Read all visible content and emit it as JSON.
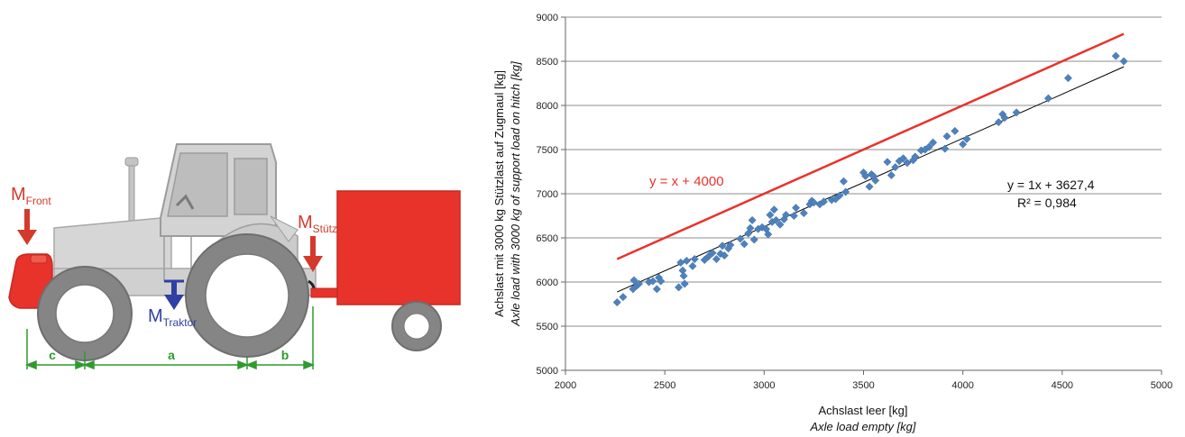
{
  "diagram": {
    "labels": {
      "front": {
        "main": "M",
        "sub": "Front"
      },
      "stuetz": {
        "main": "M",
        "sub": "Stütz"
      },
      "traktor": {
        "main": "M",
        "sub": "Traktor"
      }
    },
    "dimensions": [
      "c",
      "a",
      "b"
    ],
    "colors": {
      "tractor_body": "#cfcfcf",
      "tire": "#8a8a8a",
      "weight": "#e8332a",
      "trailer": "#e8332a",
      "force_arrow_red": "#d43a2c",
      "force_arrow_blue": "#2f3fa3",
      "dimension": "#2e9b2e"
    }
  },
  "chart_data": {
    "type": "scatter",
    "xlabel": "Achslast leer [kg]",
    "xlabel_en": "Axle load empty [kg]",
    "ylabel": "Achslast mit 3000 kg Stützlast auf Zugmaul  [kg]",
    "ylabel_en": "Axle load with 3000 kg of support load on hitch [kg]",
    "xlim": [
      2000,
      5000
    ],
    "ylim": [
      5000,
      9000
    ],
    "xticks": [
      "2000",
      "2500",
      "3000",
      "3500",
      "4000",
      "4500",
      "5000"
    ],
    "yticks": [
      "5000",
      "5500",
      "6000",
      "6500",
      "7000",
      "7500",
      "8000",
      "8500",
      "9000"
    ],
    "grid": "horizontal",
    "marker_color": "#4f81bd",
    "series": [
      {
        "points": [
          [
            2260,
            5770
          ],
          [
            2290,
            5830
          ],
          [
            2340,
            5920
          ],
          [
            2345,
            6020
          ],
          [
            2360,
            5960
          ],
          [
            2370,
            5980
          ],
          [
            2420,
            6000
          ],
          [
            2440,
            6010
          ],
          [
            2460,
            5920
          ],
          [
            2470,
            6050
          ],
          [
            2480,
            6010
          ],
          [
            2570,
            5940
          ],
          [
            2580,
            6220
          ],
          [
            2590,
            6130
          ],
          [
            2595,
            6070
          ],
          [
            2600,
            5980
          ],
          [
            2610,
            6240
          ],
          [
            2640,
            6180
          ],
          [
            2650,
            6260
          ],
          [
            2700,
            6250
          ],
          [
            2720,
            6290
          ],
          [
            2740,
            6330
          ],
          [
            2760,
            6260
          ],
          [
            2780,
            6320
          ],
          [
            2790,
            6410
          ],
          [
            2800,
            6300
          ],
          [
            2820,
            6380
          ],
          [
            2830,
            6420
          ],
          [
            2880,
            6490
          ],
          [
            2900,
            6430
          ],
          [
            2920,
            6550
          ],
          [
            2930,
            6610
          ],
          [
            2940,
            6700
          ],
          [
            2950,
            6480
          ],
          [
            2970,
            6600
          ],
          [
            2990,
            6620
          ],
          [
            3010,
            6600
          ],
          [
            3020,
            6540
          ],
          [
            3030,
            6760
          ],
          [
            3040,
            6680
          ],
          [
            3050,
            6820
          ],
          [
            3060,
            6700
          ],
          [
            3080,
            6650
          ],
          [
            3100,
            6710
          ],
          [
            3110,
            6760
          ],
          [
            3150,
            6750
          ],
          [
            3160,
            6840
          ],
          [
            3200,
            6780
          ],
          [
            3230,
            6880
          ],
          [
            3240,
            6920
          ],
          [
            3250,
            6900
          ],
          [
            3280,
            6880
          ],
          [
            3300,
            6910
          ],
          [
            3340,
            6930
          ],
          [
            3360,
            6940
          ],
          [
            3380,
            6980
          ],
          [
            3400,
            7140
          ],
          [
            3410,
            7020
          ],
          [
            3500,
            7240
          ],
          [
            3510,
            7200
          ],
          [
            3530,
            7080
          ],
          [
            3540,
            7220
          ],
          [
            3550,
            7200
          ],
          [
            3560,
            7150
          ],
          [
            3620,
            7360
          ],
          [
            3640,
            7210
          ],
          [
            3660,
            7300
          ],
          [
            3680,
            7370
          ],
          [
            3700,
            7400
          ],
          [
            3720,
            7350
          ],
          [
            3750,
            7380
          ],
          [
            3760,
            7420
          ],
          [
            3790,
            7490
          ],
          [
            3810,
            7500
          ],
          [
            3830,
            7530
          ],
          [
            3850,
            7580
          ],
          [
            3910,
            7510
          ],
          [
            3920,
            7650
          ],
          [
            3960,
            7710
          ],
          [
            4000,
            7560
          ],
          [
            4020,
            7620
          ],
          [
            4180,
            7810
          ],
          [
            4200,
            7900
          ],
          [
            4210,
            7860
          ],
          [
            4270,
            7920
          ],
          [
            4430,
            8080
          ],
          [
            4530,
            8310
          ],
          [
            4770,
            8560
          ],
          [
            4810,
            8500
          ]
        ]
      }
    ],
    "lines": [
      {
        "label": "y = x + 4000",
        "slope": 1,
        "intercept": 4000,
        "x_range": [
          2260,
          4810
        ],
        "color": "#e8332a"
      },
      {
        "label": "y = 1x + 3627,4",
        "r2_label": "R² = 0,984",
        "slope": 1,
        "intercept": 3627.4,
        "x_range": [
          2260,
          4810
        ],
        "color": "#000000"
      }
    ]
  }
}
